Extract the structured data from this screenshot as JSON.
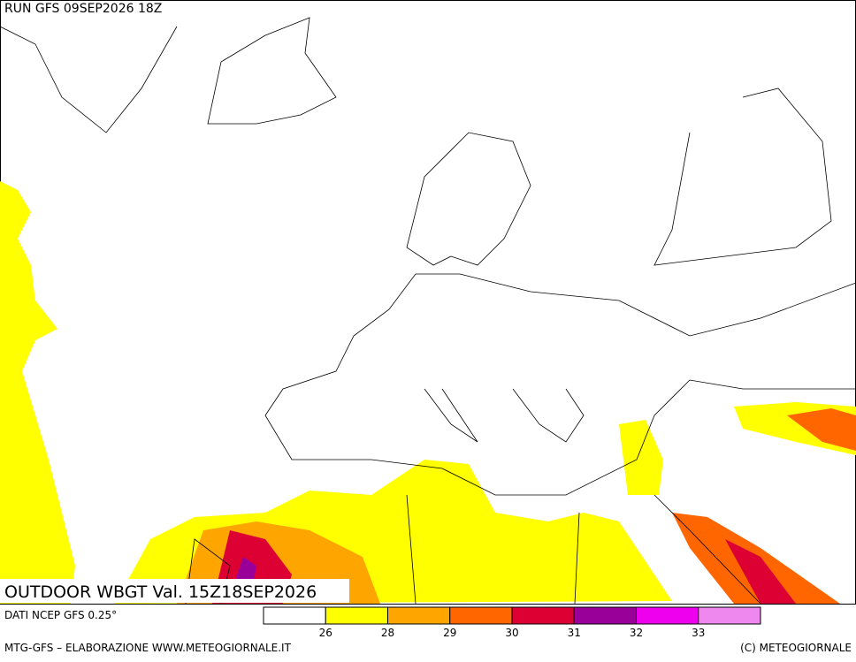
{
  "header": {
    "run": "RUN GFS 09SEP2026 18Z"
  },
  "title": "OUTDOOR WBGT Val. 15Z18SEP2026",
  "source": "DATI NCEP GFS 0.25°",
  "legend": {
    "colors": [
      "#ffffff",
      "#ffff00",
      "#ffa500",
      "#ff6600",
      "#dd0033",
      "#990099",
      "#ee00ee",
      "#ee88ee"
    ],
    "ticks": [
      26,
      28,
      29,
      30,
      31,
      32,
      33
    ]
  },
  "footer": {
    "left": "MTG-GFS – ELABORAZIONE WWW.METEOGIORNALE.IT",
    "right": "(C) METEOGIORNALE"
  }
}
